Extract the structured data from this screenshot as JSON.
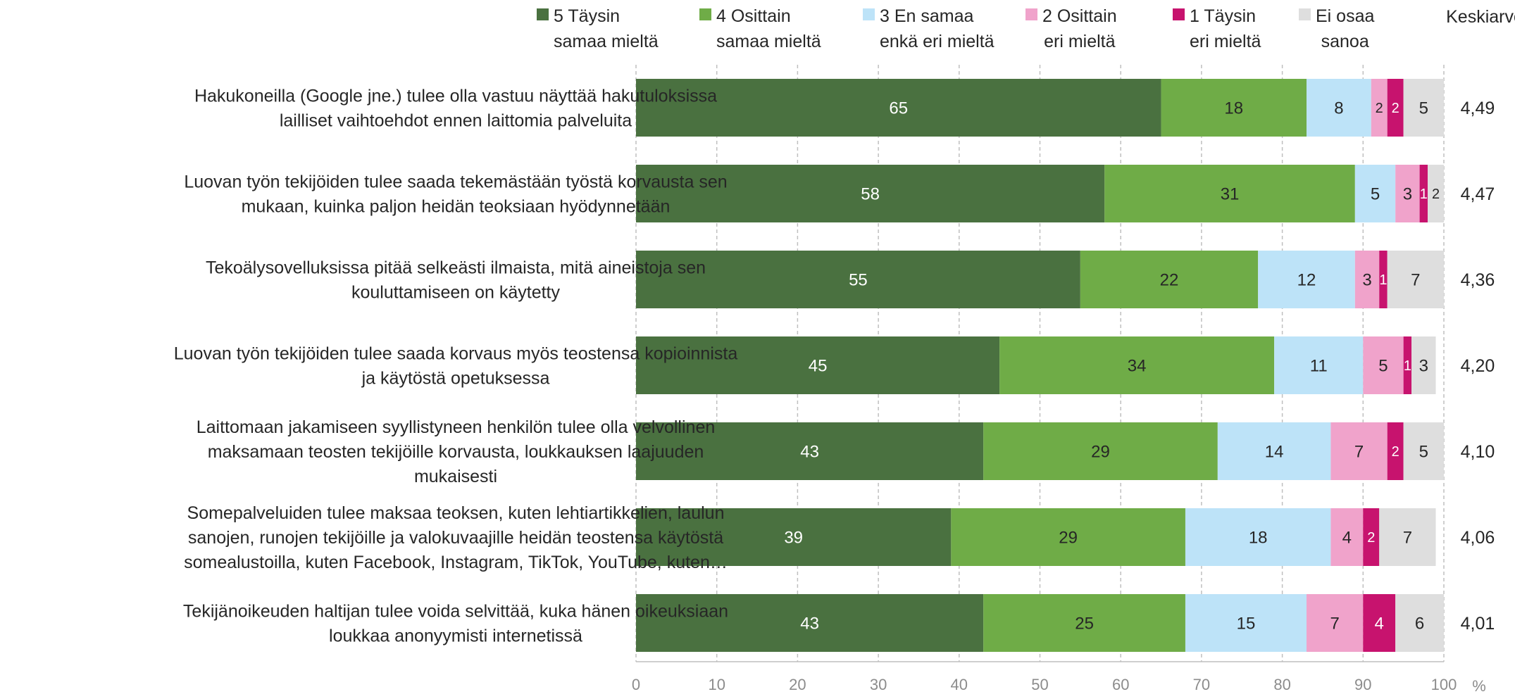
{
  "chart_data": {
    "type": "bar",
    "orientation": "horizontal",
    "stacked": true,
    "legend_position": "top",
    "grid": "vertical-dashed",
    "xlim": [
      0,
      100
    ],
    "x_ticks": [
      "0",
      "10",
      "20",
      "30",
      "40",
      "50",
      "60",
      "70",
      "80",
      "90",
      "100"
    ],
    "x_unit": "%",
    "mean_header": "Keskiarvo",
    "categories": [
      [
        "Hakukoneilla (Google jne.) tulee olla vastuu näyttää hakutuloksissa",
        "lailliset vaihtoehdot ennen laittomia palveluita"
      ],
      [
        "Luovan työn tekijöiden tulee saada tekemästään työstä korvausta sen",
        "mukaan, kuinka paljon heidän teoksiaan hyödynnetään"
      ],
      [
        "Tekoälysovelluksissa pitää selkeästi ilmaista, mitä aineistoja sen",
        "kouluttamiseen on käytetty"
      ],
      [
        "Luovan työn tekijöiden tulee saada korvaus myös teostensa kopioinnista",
        "ja käytöstä opetuksessa"
      ],
      [
        "Laittomaan jakamiseen syyllistyneen henkilön tulee olla velvollinen",
        "maksamaan teosten tekijöille korvausta, loukkauksen laajuuden",
        "mukaisesti"
      ],
      [
        "Somepalveluiden tulee maksaa teoksen, kuten lehtiartikkelien, laulun",
        "sanojen, runojen tekijöille ja valokuvaajille heidän teostensa käytöstä",
        "somealustoilla, kuten Facebook, Instagram, TikTok, YouTube, kuten…"
      ],
      [
        "Tekijänoikeuden haltijan tulee voida selvittää, kuka hänen oikeuksiaan",
        "loukkaa anonyymisti internetissä"
      ]
    ],
    "means": [
      "4,49",
      "4,47",
      "4,36",
      "4,20",
      "4,10",
      "4,06",
      "4,01"
    ],
    "series": [
      {
        "name": [
          "5 Täysin",
          "samaa mieltä"
        ],
        "color": "#4a7140",
        "label_color": "#ffffff",
        "values": [
          65,
          58,
          55,
          45,
          43,
          39,
          43
        ]
      },
      {
        "name": [
          "4 Osittain",
          "samaa mieltä"
        ],
        "color": "#6fac47",
        "label_color": "#262626",
        "values": [
          18,
          31,
          22,
          34,
          29,
          29,
          25
        ]
      },
      {
        "name": [
          "3 En samaa",
          "enkä eri mieltä"
        ],
        "color": "#bde3f8",
        "label_color": "#262626",
        "values": [
          8,
          5,
          12,
          11,
          14,
          18,
          15
        ]
      },
      {
        "name": [
          "2 Osittain",
          "eri mieltä"
        ],
        "color": "#f0a3cb",
        "label_color": "#262626",
        "values": [
          2,
          3,
          3,
          5,
          7,
          4,
          7
        ]
      },
      {
        "name": [
          "1 Täysin",
          "eri mieltä"
        ],
        "color": "#c7136e",
        "label_color": "#ffffff",
        "values": [
          2,
          1,
          1,
          1,
          2,
          2,
          4
        ]
      },
      {
        "name": [
          "Ei osaa",
          "sanoa"
        ],
        "color": "#dedede",
        "label_color": "#262626",
        "values": [
          5,
          2,
          7,
          3,
          5,
          7,
          6
        ]
      }
    ]
  }
}
